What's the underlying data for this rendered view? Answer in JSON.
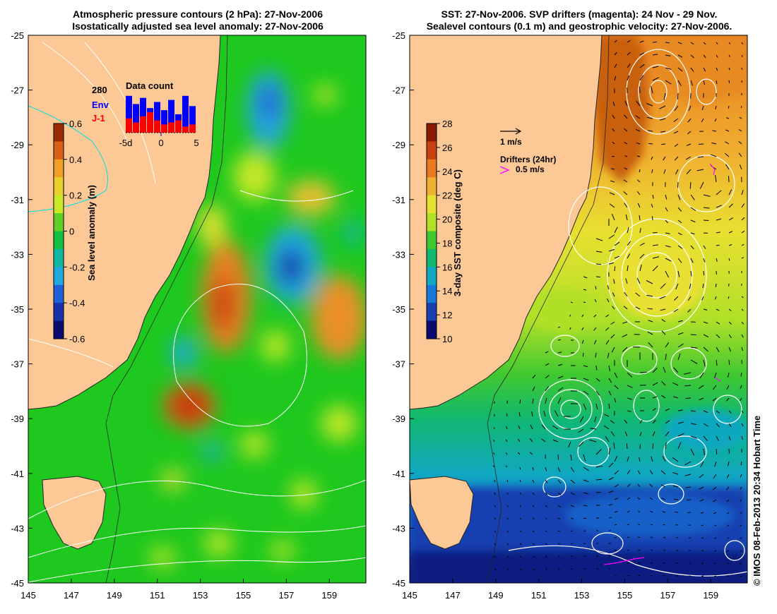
{
  "left_panel": {
    "title_line1": "Atmospheric pressure contours (2 hPa): 27-Nov-2006",
    "title_line2": "Isostatically adjusted sea level anomaly: 27-Nov-2006",
    "lat_ticks": [
      "-25",
      "-27",
      "-29",
      "-31",
      "-33",
      "-35",
      "-37",
      "-39",
      "-41",
      "-43",
      "-45"
    ],
    "lon_ticks": [
      "145",
      "147",
      "149",
      "151",
      "153",
      "155",
      "157",
      "159"
    ],
    "colorbar": {
      "label": "Sea level anomaly (m)",
      "ticks": [
        "0.6",
        "0.4",
        "0.2",
        "0",
        "-0.2",
        "-0.4",
        "-0.6"
      ],
      "colors": [
        "#9a2a00",
        "#d86018",
        "#f0a028",
        "#e8d030",
        "#c8e828",
        "#60d028",
        "#10c040",
        "#10b8a0",
        "#20a8e0",
        "#2060d8",
        "#1830a8",
        "#0a0a70"
      ]
    },
    "data_count": {
      "title": "Data count",
      "count_label": "280",
      "env_label": "Env",
      "j1_label": "J-1",
      "x_ticks": [
        "-5d",
        "0",
        "5"
      ],
      "env_color": "#0000ff",
      "j1_color": "#ff0000",
      "env_values": [
        0.9,
        0.7,
        0.85,
        0.6,
        0.75,
        0.55,
        0.8,
        0.45,
        0.9,
        0.65
      ],
      "j1_values": [
        0.35,
        0.25,
        0.4,
        0.5,
        0.3,
        0.2,
        0.25,
        0.3,
        0.15,
        0.2
      ]
    }
  },
  "right_panel": {
    "title_line1": "SST: 27-Nov-2006. SVP drifters (magenta): 24 Nov - 29 Nov.",
    "title_line2": "Sealevel contours (0.1 m) and geostrophic velocity: 27-Nov-2006.",
    "lat_ticks": [
      "-25",
      "-27",
      "-29",
      "-31",
      "-33",
      "-35",
      "-37",
      "-39",
      "-41",
      "-43",
      "-45"
    ],
    "lon_ticks": [
      "145",
      "147",
      "149",
      "151",
      "153",
      "155",
      "157",
      "159"
    ],
    "colorbar": {
      "label": "3-day SST composite (deg C)",
      "ticks": [
        "28",
        "26",
        "24",
        "22",
        "20",
        "18",
        "16",
        "14",
        "12",
        "10"
      ],
      "colors": [
        "#8a1a00",
        "#c84010",
        "#e87a20",
        "#f0b030",
        "#e8e030",
        "#b0e028",
        "#40c830",
        "#10b870",
        "#10a8c0",
        "#1878d8",
        "#1840b0",
        "#0a0a70"
      ]
    },
    "velocity_scale_label": "1 m/s",
    "drifters_label": "Drifters (24hr)",
    "drifter_speed_label": "0.5 m/s",
    "drifter_color": "#ff00ff"
  },
  "copyright": "© IMOS 08-Feb-2013 20:34 Hobart Time",
  "colors": {
    "land": "#fbc896",
    "ocean_green": "#1ec81e",
    "coastline": "#222222",
    "contour": "#ffffff"
  }
}
